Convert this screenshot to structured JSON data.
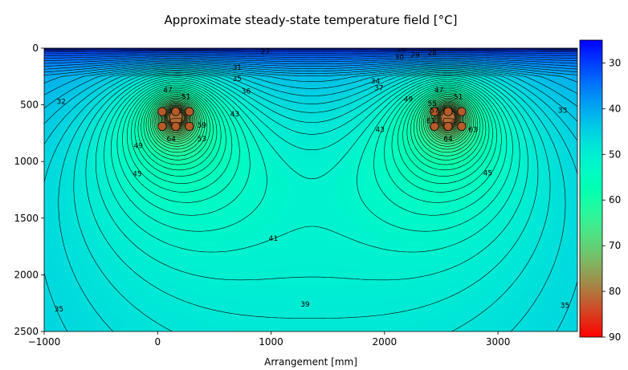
{
  "chart_data": {
    "type": "heatmap",
    "title": "Approximate steady-state temperature field [$^\\circ$C]",
    "xlabel": "Arrangement [mm]",
    "ylabel": "",
    "xlim": [
      -1000,
      3700
    ],
    "ylim": [
      2500,
      0
    ],
    "y_inverted": true,
    "x_ticks": [
      -1000,
      0,
      1000,
      2000,
      3000
    ],
    "x_tick_labels": [
      "−1000",
      "0",
      "1000",
      "2000",
      "3000"
    ],
    "y_ticks": [
      0,
      500,
      1000,
      1500,
      2000,
      2500
    ],
    "y_tick_labels": [
      "0",
      "500",
      "1000",
      "1500",
      "2000",
      "2500"
    ],
    "colorbar": {
      "colormap": "rainbow",
      "range": [
        25,
        90
      ],
      "reversed": true,
      "ticks": [
        30,
        40,
        50,
        60,
        70,
        80,
        90
      ],
      "tick_labels": [
        "30",
        "40",
        "50",
        "60",
        "70",
        "80",
        "90"
      ]
    },
    "grid": false,
    "legend": "none",
    "heat_sources": [
      {
        "x": 160,
        "y": 610,
        "peak": 90
      },
      {
        "x": 2560,
        "y": 610,
        "peak": 90
      }
    ],
    "cable_bundles": [
      {
        "cables": [
          {
            "x": 40,
            "y": 560
          },
          {
            "x": 160,
            "y": 560
          },
          {
            "x": 280,
            "y": 560
          },
          {
            "x": 40,
            "y": 690
          },
          {
            "x": 160,
            "y": 690
          },
          {
            "x": 280,
            "y": 690
          }
        ]
      },
      {
        "cables": [
          {
            "x": 2440,
            "y": 560
          },
          {
            "x": 2560,
            "y": 560
          },
          {
            "x": 2680,
            "y": 560
          },
          {
            "x": 2440,
            "y": 690
          },
          {
            "x": 2560,
            "y": 690
          },
          {
            "x": 2680,
            "y": 690
          }
        ]
      }
    ],
    "contour_labels": [
      {
        "text": "27",
        "x": 950,
        "y": 30
      },
      {
        "text": "26",
        "x": 2150,
        "y": 10
      },
      {
        "text": "28",
        "x": 2420,
        "y": 40
      },
      {
        "text": "29",
        "x": 2270,
        "y": 60
      },
      {
        "text": "30",
        "x": 2130,
        "y": 80
      },
      {
        "text": "31",
        "x": 700,
        "y": 170
      },
      {
        "text": "32",
        "x": -850,
        "y": 470
      },
      {
        "text": "34",
        "x": 1920,
        "y": 290
      },
      {
        "text": "35",
        "x": 700,
        "y": 270
      },
      {
        "text": "36",
        "x": 780,
        "y": 380
      },
      {
        "text": "37",
        "x": 1950,
        "y": 350
      },
      {
        "text": "43",
        "x": 680,
        "y": 580
      },
      {
        "text": "43",
        "x": 1960,
        "y": 720
      },
      {
        "text": "47",
        "x": 90,
        "y": 370
      },
      {
        "text": "47",
        "x": 2480,
        "y": 370
      },
      {
        "text": "49",
        "x": -170,
        "y": 860
      },
      {
        "text": "49",
        "x": 2210,
        "y": 450
      },
      {
        "text": "51",
        "x": 250,
        "y": 430
      },
      {
        "text": "51",
        "x": 2650,
        "y": 430
      },
      {
        "text": "53",
        "x": 390,
        "y": 800
      },
      {
        "text": "55",
        "x": 2420,
        "y": 490
      },
      {
        "text": "57",
        "x": 2440,
        "y": 550
      },
      {
        "text": "59",
        "x": 390,
        "y": 680
      },
      {
        "text": "61",
        "x": 2410,
        "y": 640
      },
      {
        "text": "63",
        "x": 2780,
        "y": 720
      },
      {
        "text": "64",
        "x": 120,
        "y": 800
      },
      {
        "text": "64",
        "x": 2560,
        "y": 800
      },
      {
        "text": "45",
        "x": -180,
        "y": 1110
      },
      {
        "text": "45",
        "x": 2910,
        "y": 1100
      },
      {
        "text": "41",
        "x": 1020,
        "y": 1680
      },
      {
        "text": "39",
        "x": 1300,
        "y": 2260
      },
      {
        "text": "33",
        "x": 3570,
        "y": 550
      },
      {
        "text": "35",
        "x": -870,
        "y": 2300
      },
      {
        "text": "35",
        "x": 3590,
        "y": 2270
      }
    ]
  },
  "view": {
    "t_ref": 37.7,
    "t_min": 25,
    "t_max": 90,
    "field_scale": 13.8,
    "field_power": 1.45,
    "image_nx": 160,
    "image_ny": 100,
    "n_contour_levels": 60,
    "contour_color": "#000000",
    "cable_fill": "#b85a28",
    "cable_stroke": "#000000"
  }
}
